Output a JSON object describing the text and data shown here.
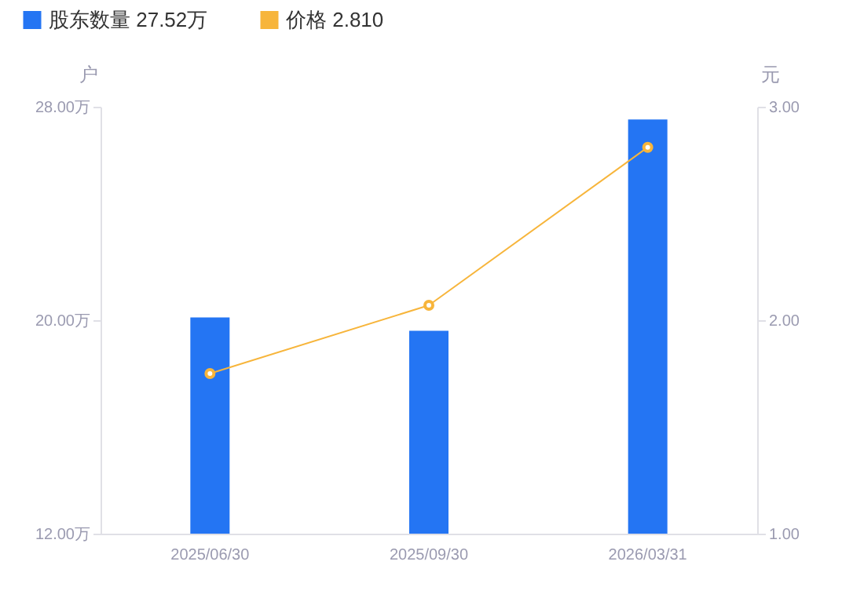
{
  "chart_data": {
    "type": "bar",
    "categories": [
      "2025/06/30",
      "2025/09/30",
      "2026/03/31"
    ],
    "ylabel": "户",
    "y2label": "元",
    "series": [
      {
        "name": "股东数量 27.52万",
        "color": "#2475f3",
        "values": [
          20.1,
          19.6,
          27.52
        ]
      },
      {
        "name": "价格 2.810",
        "type": "line",
        "axis": "y2",
        "color": "#f7b53b",
        "values": [
          1.75,
          2.07,
          2.81
        ]
      }
    ],
    "ylim": [
      12,
      28
    ],
    "yticks": [
      {
        "value": 12,
        "label": "12.00万"
      },
      {
        "value": 20,
        "label": "20.00万"
      },
      {
        "value": 28,
        "label": "28.00万"
      }
    ],
    "y2lim": [
      1,
      3
    ],
    "y2ticks": [
      {
        "value": 1,
        "label": "1.00"
      },
      {
        "value": 2,
        "label": "2.00"
      },
      {
        "value": 3,
        "label": "3.00"
      }
    ],
    "marker": "circle",
    "legend": "top left",
    "grid": false
  }
}
